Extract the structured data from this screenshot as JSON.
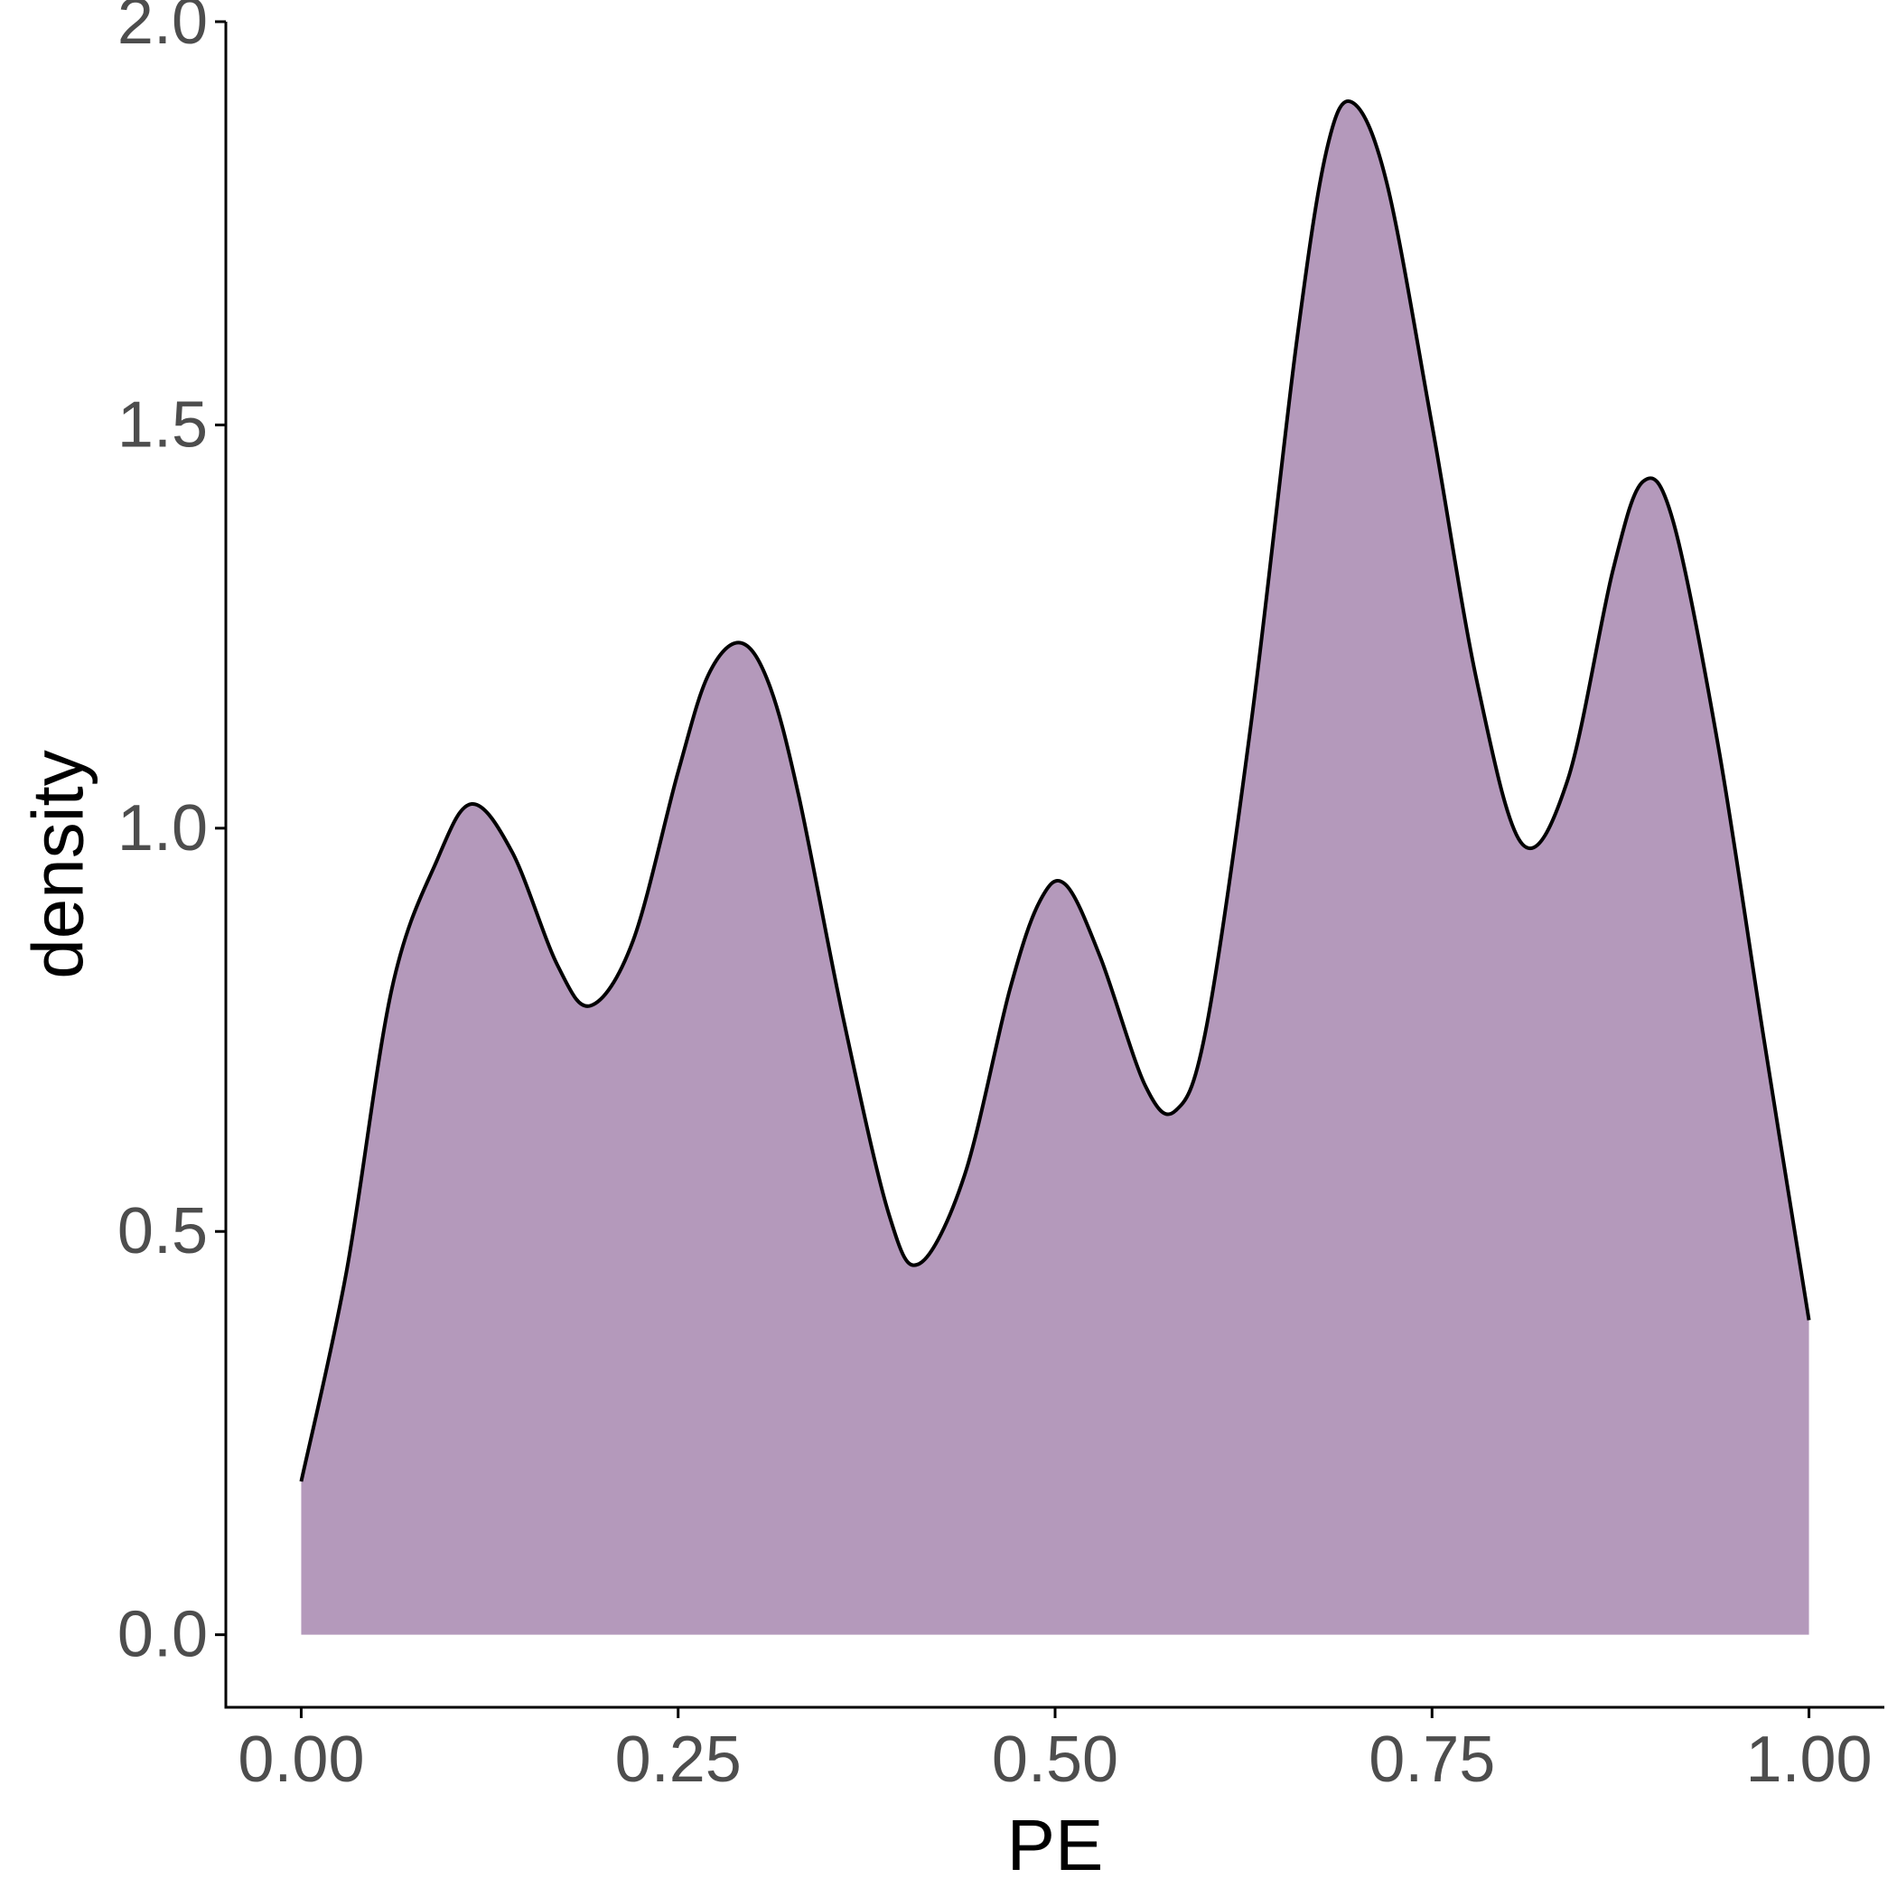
{
  "chart_data": {
    "type": "area",
    "title": "",
    "xlabel": "PE",
    "ylabel": "density",
    "xlim": [
      -0.05,
      1.05
    ],
    "ylim": [
      -0.09,
      2.0
    ],
    "x_ticks": [
      0.0,
      0.25,
      0.5,
      0.75,
      1.0
    ],
    "x_tick_labels": [
      "0.00",
      "0.25",
      "0.50",
      "0.75",
      "1.00"
    ],
    "y_ticks": [
      0.0,
      0.5,
      1.0,
      1.5,
      2.0
    ],
    "y_tick_labels": [
      "0.0",
      "0.5",
      "1.0",
      "1.5",
      "2.0"
    ],
    "grid": false,
    "legend": "none",
    "fill_color": "#b499bb",
    "line_color": "#000000",
    "series": [
      {
        "x": [
          0.0,
          0.03,
          0.06,
          0.09,
          0.113,
          0.14,
          0.17,
          0.192,
          0.22,
          0.25,
          0.27,
          0.291,
          0.31,
          0.33,
          0.36,
          0.39,
          0.41,
          0.44,
          0.47,
          0.49,
          0.507,
          0.53,
          0.56,
          0.58,
          0.6,
          0.63,
          0.66,
          0.68,
          0.697,
          0.72,
          0.75,
          0.78,
          0.81,
          0.84,
          0.87,
          0.89,
          0.91,
          0.94,
          0.97,
          1.0
        ],
        "y": [
          0.19,
          0.45,
          0.8,
          0.96,
          1.03,
          0.97,
          0.83,
          0.78,
          0.86,
          1.07,
          1.19,
          1.23,
          1.18,
          1.04,
          0.76,
          0.52,
          0.46,
          0.57,
          0.8,
          0.91,
          0.93,
          0.84,
          0.68,
          0.65,
          0.75,
          1.13,
          1.6,
          1.84,
          1.9,
          1.8,
          1.5,
          1.18,
          0.98,
          1.06,
          1.32,
          1.43,
          1.38,
          1.1,
          0.74,
          0.39
        ]
      }
    ]
  }
}
